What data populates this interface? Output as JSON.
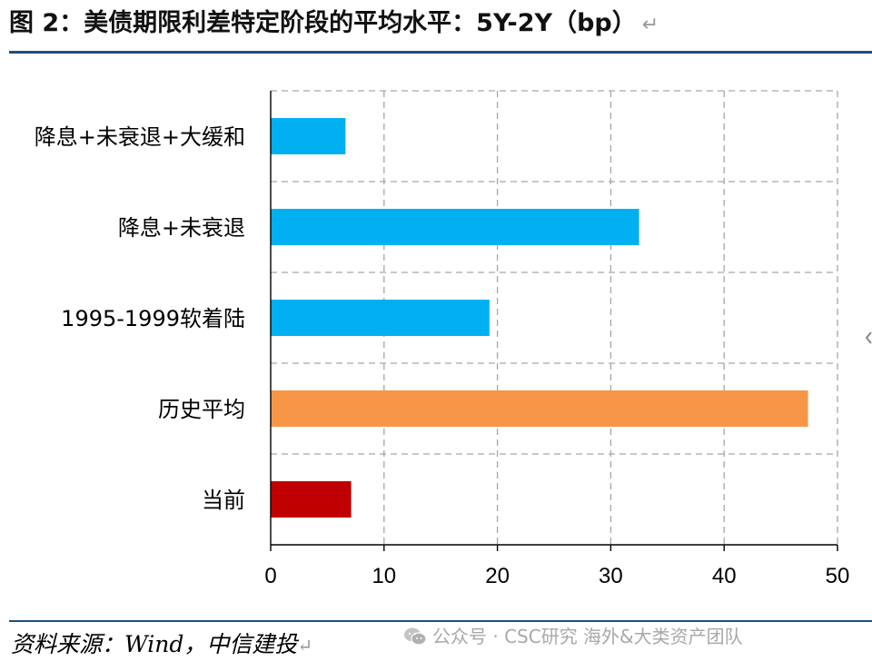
{
  "header": {
    "title": "图 2：美债期限利差特定阶段的平均水平：5Y-2Y（bp）",
    "return_mark": "↵"
  },
  "footer": {
    "source": "资料来源：Wind，中信建投",
    "return_mark": "↵",
    "watermark": "公众号 · CSC研究 海外&大类资产团队",
    "watermark_icon": "wechat-icon"
  },
  "chart_data": {
    "type": "bar",
    "orientation": "horizontal",
    "title": "",
    "xlabel": "",
    "ylabel": "",
    "categories": [
      "降息+未衰退+大缓和",
      "降息+未衰退",
      "1995-1999软着陆",
      "历史平均",
      "当前"
    ],
    "values": [
      6.6,
      32.5,
      19.3,
      47.4,
      7.1
    ],
    "colors": [
      "#00b0f0",
      "#00b0f0",
      "#00b0f0",
      "#f79646",
      "#c00000"
    ],
    "xlim": [
      0,
      50
    ],
    "xticks": [
      "0",
      "10",
      "20",
      "30",
      "40",
      "50"
    ],
    "grid": true,
    "legend": "none"
  }
}
